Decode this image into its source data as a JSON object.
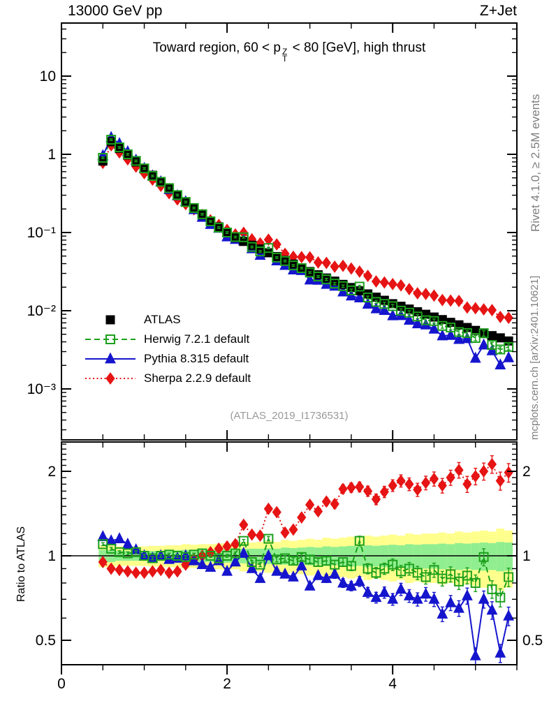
{
  "header": {
    "left": "13000 GeV pp",
    "right": "Z+Jet"
  },
  "panel_title": {
    "before": "Toward region, 60 < p",
    "stack_top": "Z",
    "stack_bottom": "T",
    "after": " < 80 [GeV], high thrust"
  },
  "watermark": {
    "text": "(ATLAS_2019_I1736531)",
    "color": "#9a9a9a"
  },
  "right_margin": {
    "top_text": "Rivet 4.1.0, ≥ 2.5M events",
    "bottom_text": "mcplots.cern.ch [arXiv:2401.10621]"
  },
  "legend": [
    {
      "label": "ATLAS"
    },
    {
      "label": "Herwig 7.2.1 default"
    },
    {
      "label": "Pythia 8.315 default"
    },
    {
      "label": "Sherpa 2.2.9 default"
    }
  ],
  "chart_data": {
    "type": "scatter",
    "description": "Two stacked panels: top = differential spectrum (log y), bottom = MC/data ratio (log y) with data uncertainty bands",
    "x": [
      0.5,
      0.6,
      0.7,
      0.8,
      0.9,
      1.0,
      1.1,
      1.2,
      1.3,
      1.4,
      1.5,
      1.6,
      1.7,
      1.8,
      1.9,
      2.0,
      2.1,
      2.2,
      2.3,
      2.4,
      2.5,
      2.6,
      2.7,
      2.8,
      2.9,
      3.0,
      3.1,
      3.2,
      3.3,
      3.4,
      3.5,
      3.6,
      3.7,
      3.8,
      3.9,
      4.0,
      4.1,
      4.2,
      4.3,
      4.4,
      4.5,
      4.6,
      4.7,
      4.8,
      4.9,
      5.0,
      5.1,
      5.2,
      5.3,
      5.4
    ],
    "bin_halfwidth": 0.05,
    "atlas_values": [
      0.82,
      1.45,
      1.19,
      0.98,
      0.8,
      0.66,
      0.54,
      0.445,
      0.366,
      0.301,
      0.248,
      0.204,
      0.168,
      0.139,
      0.118,
      0.1,
      0.0859,
      0.0769,
      0.0688,
      0.0616,
      0.0551,
      0.0493,
      0.0441,
      0.0395,
      0.0354,
      0.0317,
      0.0288,
      0.0262,
      0.0239,
      0.0217,
      0.0198,
      0.018,
      0.0164,
      0.0149,
      0.0136,
      0.0123,
      0.0114,
      0.0105,
      0.0097,
      0.009,
      0.0083,
      0.0077,
      0.0071,
      0.0066,
      0.0061,
      0.0056,
      0.0052,
      0.0048,
      0.0045,
      0.0041
    ],
    "series": [
      {
        "name": "ATLAS",
        "color": "#000000",
        "marker": "square",
        "filled": true,
        "line": "none"
      },
      {
        "name": "Herwig 7.2.1 default",
        "color": "#1ca01c",
        "marker": "square",
        "filled": false,
        "line": "dashed",
        "ratio_to_atlas": [
          1.1,
          1.06,
          1.03,
          1.02,
          1.03,
          1.0,
          0.98,
          1.0,
          1.01,
          1.0,
          0.99,
          1.01,
          1.02,
          1.0,
          0.98,
          1.0,
          1.02,
          1.13,
          0.95,
          0.93,
          1.15,
          0.97,
          0.98,
          0.96,
          0.99,
          0.97,
          0.95,
          0.96,
          0.93,
          0.95,
          0.92,
          1.13,
          0.9,
          0.87,
          0.9,
          0.93,
          0.88,
          0.9,
          0.87,
          0.84,
          0.89,
          0.83,
          0.86,
          0.81,
          0.85,
          0.8,
          0.99,
          0.76,
          0.71,
          0.84
        ]
      },
      {
        "name": "Pythia 8.315 default",
        "color": "#1515cd",
        "marker": "triangle",
        "filled": true,
        "line": "solid",
        "ratio_to_atlas": [
          1.17,
          1.13,
          1.15,
          1.1,
          1.05,
          1.0,
          0.98,
          1.0,
          0.97,
          0.98,
          1.0,
          0.96,
          0.93,
          0.91,
          0.96,
          0.88,
          0.95,
          1.02,
          0.9,
          0.83,
          1.0,
          0.88,
          0.86,
          0.84,
          0.92,
          0.78,
          0.85,
          0.83,
          0.86,
          0.8,
          0.78,
          0.81,
          0.74,
          0.71,
          0.74,
          0.7,
          0.76,
          0.72,
          0.7,
          0.73,
          0.7,
          0.62,
          0.68,
          0.65,
          0.72,
          0.44,
          0.7,
          0.64,
          0.45,
          0.61
        ]
      },
      {
        "name": "Sherpa 2.2.9 default",
        "color": "#e61414",
        "marker": "diamond",
        "filled": true,
        "line": "dotted",
        "ratio_to_atlas": [
          0.95,
          0.9,
          0.89,
          0.88,
          0.87,
          0.87,
          0.88,
          0.89,
          0.87,
          0.88,
          0.93,
          0.97,
          1.0,
          1.03,
          1.06,
          1.08,
          1.1,
          1.29,
          1.19,
          1.18,
          1.47,
          1.43,
          1.21,
          1.24,
          1.37,
          1.52,
          1.44,
          1.56,
          1.53,
          1.73,
          1.75,
          1.76,
          1.7,
          1.59,
          1.69,
          1.78,
          1.85,
          1.8,
          1.72,
          1.82,
          1.88,
          1.78,
          1.9,
          2.02,
          1.8,
          1.92,
          2.0,
          2.12,
          1.85,
          1.98
        ]
      }
    ],
    "bands": {
      "inner_color": "#90ee90",
      "outer_color": "#ffff8c",
      "inner_halfwidth": [
        0.05,
        0.05,
        0.04,
        0.04,
        0.04,
        0.04,
        0.04,
        0.04,
        0.045,
        0.045,
        0.05,
        0.05,
        0.05,
        0.05,
        0.05,
        0.055,
        0.055,
        0.06,
        0.06,
        0.06,
        0.065,
        0.06,
        0.07,
        0.065,
        0.07,
        0.075,
        0.07,
        0.08,
        0.075,
        0.08,
        0.085,
        0.08,
        0.09,
        0.085,
        0.09,
        0.095,
        0.09,
        0.1,
        0.095,
        0.1,
        0.1,
        0.105,
        0.1,
        0.11,
        0.105,
        0.11,
        0.115,
        0.11,
        0.12,
        0.115
      ],
      "outer_halfwidth": [
        0.09,
        0.09,
        0.08,
        0.08,
        0.08,
        0.08,
        0.085,
        0.085,
        0.09,
        0.09,
        0.1,
        0.095,
        0.1,
        0.1,
        0.105,
        0.11,
        0.105,
        0.12,
        0.115,
        0.12,
        0.13,
        0.12,
        0.14,
        0.13,
        0.14,
        0.15,
        0.14,
        0.16,
        0.15,
        0.16,
        0.17,
        0.16,
        0.18,
        0.17,
        0.18,
        0.19,
        0.18,
        0.2,
        0.19,
        0.2,
        0.2,
        0.21,
        0.2,
        0.22,
        0.21,
        0.22,
        0.23,
        0.22,
        0.25,
        0.23
      ]
    },
    "x_axis": {
      "lim": [
        0,
        5.5
      ],
      "minor_step": 0.5,
      "labeled_ticks": [
        {
          "v": 0,
          "label": "0"
        },
        {
          "v": 2,
          "label": "2"
        },
        {
          "v": 4,
          "label": "4"
        }
      ]
    },
    "main_panel": {
      "yscale": "log",
      "labeled_ticks": [
        {
          "v": 10,
          "label": "10"
        },
        {
          "v": 1,
          "label": "1"
        },
        {
          "v": 0.1,
          "label": "10⁻¹"
        },
        {
          "v": 0.01,
          "label": "10⁻²"
        },
        {
          "v": 0.001,
          "label": "10⁻³"
        }
      ]
    },
    "ratio_panel": {
      "yscale": "log",
      "axis_label": "Ratio to ATLAS",
      "labeled_ticks": [
        {
          "v": 2,
          "label": "2"
        },
        {
          "v": 1,
          "label": "1"
        },
        {
          "v": 0.5,
          "label": "0.5"
        }
      ]
    },
    "error_model": {
      "main_frac_base": 0.025,
      "main_frac_slope": 0.025,
      "main_x0": 3.0,
      "ratio_frac_base": 0.012,
      "ratio_frac_slope": 0.02,
      "ratio_x0": 2.2
    }
  }
}
